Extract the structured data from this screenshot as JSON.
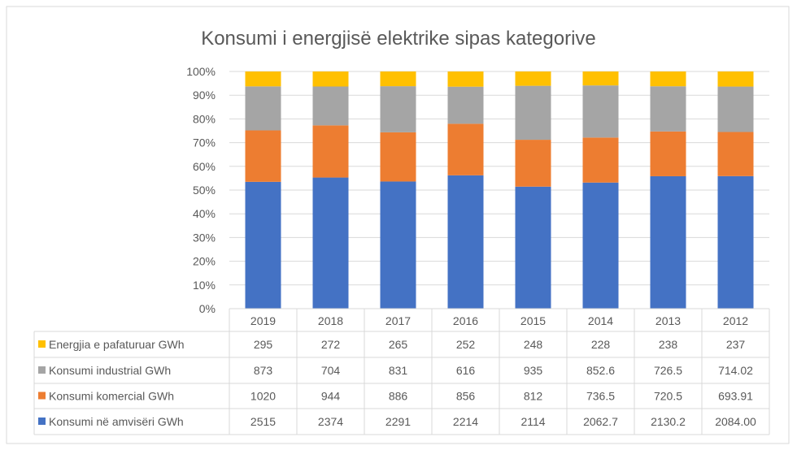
{
  "chart_data": {
    "type": "bar",
    "stacked": "percent",
    "title": "Konsumi i energjisë elektrike sipas kategorive",
    "categories": [
      "2019",
      "2018",
      "2017",
      "2016",
      "2015",
      "2014",
      "2013",
      "2012"
    ],
    "yticks": [
      "0%",
      "10%",
      "20%",
      "30%",
      "40%",
      "50%",
      "60%",
      "70%",
      "80%",
      "90%",
      "100%"
    ],
    "ylim": [
      0,
      100
    ],
    "grid": true,
    "legend": "data-table",
    "series": [
      {
        "name": "Konsumi në amvisëri  GWh",
        "color": "#4472C4",
        "values": [
          2515,
          2374,
          2291,
          2214,
          2114,
          2062.7,
          2130.2,
          2084.0
        ],
        "labels": [
          "2515",
          "2374",
          "2291",
          "2214",
          "2114",
          "2062.7",
          "2130.2",
          "2084.00"
        ]
      },
      {
        "name": "Konsumi komercial  GWh",
        "color": "#ED7D31",
        "values": [
          1020,
          944,
          886,
          856,
          812,
          736.5,
          720.5,
          693.91
        ],
        "labels": [
          "1020",
          "944",
          "886",
          "856",
          "812",
          "736.5",
          "720.5",
          "693.91"
        ]
      },
      {
        "name": "Konsumi industrial  GWh",
        "color": "#A5A5A5",
        "values": [
          873,
          704,
          831,
          616,
          935,
          852.6,
          726.5,
          714.02
        ],
        "labels": [
          "873",
          "704",
          "831",
          "616",
          "935",
          "852.6",
          "726.5",
          "714.02"
        ]
      },
      {
        "name": "Energjia e pafaturuar GWh",
        "color": "#FFC000",
        "values": [
          295,
          272,
          265,
          252,
          248,
          228,
          238,
          237
        ],
        "labels": [
          "295",
          "272",
          "265",
          "252",
          "248",
          "228",
          "238",
          "237"
        ]
      }
    ]
  }
}
